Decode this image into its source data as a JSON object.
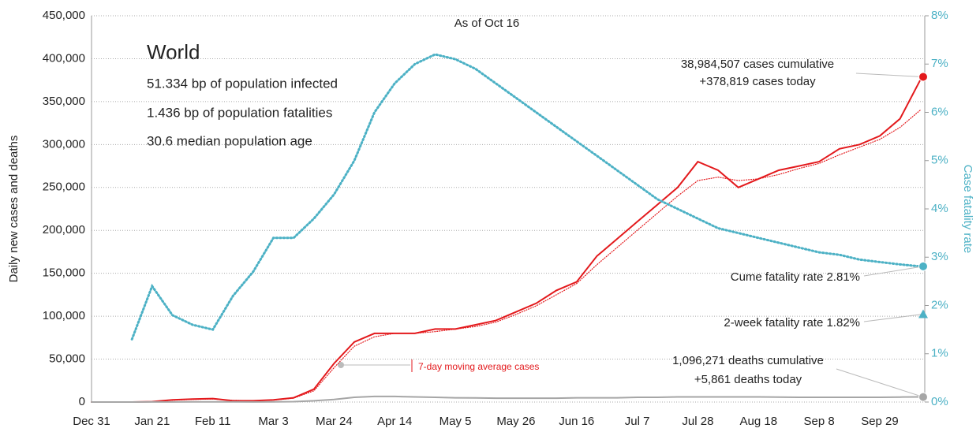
{
  "chart_data": {
    "type": "line",
    "title": "World",
    "subtitle": "As of Oct 16",
    "annotations": [
      "51.334 bp of population infected",
      "1.436 bp of population fatalities",
      "30.6 median population age"
    ],
    "ylabel": "Daily new cases and deaths",
    "y2label": "Case fatality rate",
    "categories": [
      "Dec 31",
      null,
      null,
      "Jan 21",
      null,
      null,
      "Feb 11",
      null,
      null,
      "Mar 3",
      null,
      null,
      "Mar 24",
      null,
      null,
      "Apr 14",
      null,
      null,
      "May 5",
      null,
      null,
      "May 26",
      null,
      null,
      "Jun 16",
      null,
      null,
      "Jul 7",
      null,
      null,
      "Jul 28",
      null,
      null,
      "Aug 18",
      null,
      null,
      "Sep 8",
      null,
      null,
      "Sep 29",
      null,
      null
    ],
    "ylim": [
      0,
      450000
    ],
    "yticks": [
      0,
      {
        "value": 50000,
        "label": "50,000"
      },
      {
        "value": 100000,
        "label": "100,000"
      },
      {
        "value": 150000,
        "label": "150,000"
      },
      {
        "value": 200000,
        "label": "200,000"
      },
      {
        "value": 250000,
        "label": "250,000"
      },
      {
        "value": 300000,
        "label": "300,000"
      },
      {
        "value": 350000,
        "label": "350,000"
      },
      {
        "value": 400000,
        "label": "400,000"
      },
      {
        "value": 450000,
        "label": "450,000"
      }
    ],
    "y2lim": [
      0,
      8
    ],
    "y2ticks": [
      {
        "value": 0,
        "label": "0%"
      },
      {
        "value": 1,
        "label": "1%"
      },
      {
        "value": 2,
        "label": "2%"
      },
      {
        "value": 3,
        "label": "3%"
      },
      {
        "value": 4,
        "label": "4%"
      },
      {
        "value": 5,
        "label": "5%"
      },
      {
        "value": 6,
        "label": "6%"
      },
      {
        "value": 7,
        "label": "7%"
      },
      {
        "value": 8,
        "label": "8%"
      }
    ],
    "grid": true,
    "series": [
      {
        "color": "#e3191c",
        "line": "solid",
        "values": [
          0,
          0,
          0,
          500,
          2500,
          3500,
          4000,
          1500,
          1500,
          2500,
          5000,
          15000,
          45000,
          70000,
          80000,
          80000,
          80000,
          85000,
          85000,
          90000,
          95000,
          105000,
          115000,
          130000,
          140000,
          170000,
          190000,
          210000,
          230000,
          250000,
          280000,
          270000,
          250000,
          260000,
          270000,
          275000,
          280000,
          295000,
          300000,
          310000,
          330000,
          375000
        ]
      },
      {
        "name": "7-day moving average cases",
        "color": "#e3191c",
        "line": "dotted",
        "values": [
          0,
          0,
          0,
          400,
          2000,
          3000,
          3500,
          2000,
          1500,
          2200,
          4500,
          13000,
          40000,
          65000,
          76000,
          80000,
          80000,
          82000,
          85000,
          88000,
          93000,
          102000,
          112000,
          125000,
          138000,
          160000,
          180000,
          200000,
          220000,
          240000,
          258000,
          262000,
          258000,
          260000,
          265000,
          272000,
          278000,
          288000,
          297000,
          306000,
          320000,
          340000
        ]
      },
      {
        "color": "#a6a6a6",
        "line": "solid",
        "values": [
          0,
          0,
          0,
          50,
          100,
          150,
          200,
          150,
          100,
          200,
          500,
          1500,
          3000,
          5500,
          6500,
          6500,
          6000,
          5500,
          5000,
          4800,
          4500,
          4500,
          4500,
          4500,
          5000,
          5000,
          5000,
          5500,
          5500,
          6000,
          6000,
          6000,
          6000,
          6000,
          5800,
          5500,
          5500,
          5500,
          5500,
          5500,
          5800,
          6000
        ]
      },
      {
        "color": "#4cb1c5",
        "line": "dotted",
        "axis": "y2",
        "values": [
          null,
          null,
          1.3,
          2.4,
          1.8,
          1.6,
          1.5,
          2.2,
          2.7,
          3.4,
          3.4,
          3.8,
          4.3,
          5.0,
          6.0,
          6.6,
          7.0,
          7.2,
          7.1,
          6.9,
          6.6,
          6.3,
          6.0,
          5.7,
          5.4,
          5.1,
          4.8,
          4.5,
          4.2,
          4.0,
          3.8,
          3.6,
          3.5,
          3.4,
          3.3,
          3.2,
          3.1,
          3.05,
          2.95,
          2.9,
          2.85,
          2.81
        ]
      }
    ],
    "endpoints": [
      {
        "labels": [
          "38,984,507 cases cumulative",
          "+378,819 cases today"
        ],
        "value": 378819,
        "axis": "y",
        "shape": "circle",
        "color": "#e3191c"
      },
      {
        "labels": [
          "Cume fatality rate 2.81%"
        ],
        "value": 2.81,
        "axis": "y2",
        "shape": "circle",
        "color": "#4cb1c5"
      },
      {
        "labels": [
          "2-week fatality rate 1.82%"
        ],
        "value": 1.82,
        "axis": "y2",
        "shape": "triangle",
        "color": "#4cb1c5"
      },
      {
        "labels": [
          "1,096,271 deaths cumulative",
          "+5,861 deaths today"
        ],
        "value": 5861,
        "axis": "y",
        "shape": "circle",
        "color": "#a6a6a6"
      }
    ]
  }
}
